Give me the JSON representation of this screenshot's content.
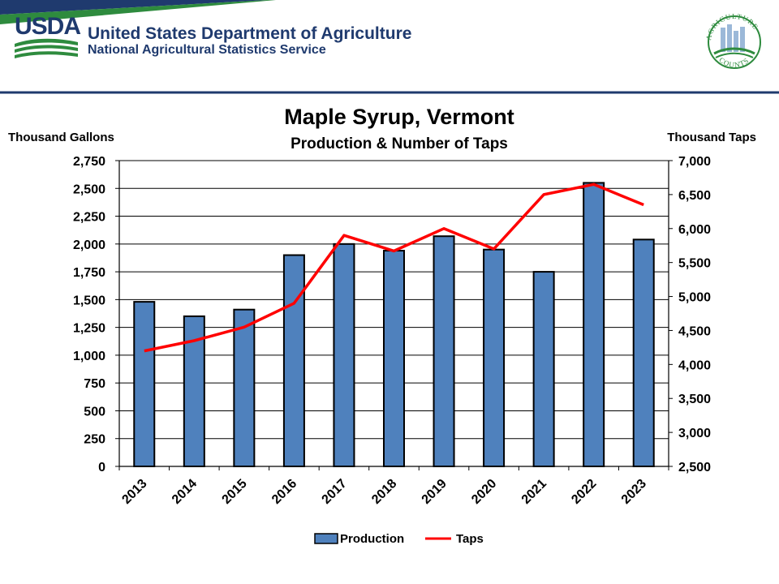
{
  "header": {
    "logo_text": "USDA",
    "agency_name": "United States Department of Agriculture",
    "agency_sub": "National Agricultural Statistics Service",
    "badge_text_top": "AGRICULTURE",
    "badge_text_bottom": "COUNTS"
  },
  "colors": {
    "navy": "#1f3a6e",
    "usda_green": "#2e8b3e",
    "bar_fill": "#4f81bd",
    "line": "#ff0000"
  },
  "chart_data": {
    "type": "bar",
    "title": "Maple Syrup, Vermont",
    "subtitle": "Production & Number of Taps",
    "y_left_label": "Thousand Gallons",
    "y_right_label": "Thousand Taps",
    "categories": [
      "2013",
      "2014",
      "2015",
      "2016",
      "2017",
      "2018",
      "2019",
      "2020",
      "2021",
      "2022",
      "2023"
    ],
    "ylim_left": [
      0,
      2750
    ],
    "yticks_left": [
      "0",
      "250",
      "500",
      "750",
      "1,000",
      "1,250",
      "1,500",
      "1,750",
      "2,000",
      "2,250",
      "2,500",
      "2,750"
    ],
    "ylim_right": [
      2500,
      7000
    ],
    "yticks_right": [
      "2,500",
      "3,000",
      "3,500",
      "4,000",
      "4,500",
      "5,000",
      "5,500",
      "6,000",
      "6,500",
      "7,000"
    ],
    "grid": true,
    "legend_position": "bottom",
    "series": [
      {
        "name": "Production",
        "kind": "bar",
        "axis": "left",
        "values": [
          1480,
          1350,
          1410,
          1900,
          2000,
          1940,
          2070,
          1950,
          1750,
          2550,
          2040
        ]
      },
      {
        "name": "Taps",
        "kind": "line",
        "axis": "right",
        "values": [
          4200,
          4350,
          4550,
          4900,
          5900,
          5670,
          6000,
          5700,
          6500,
          6650,
          6350
        ]
      }
    ]
  }
}
